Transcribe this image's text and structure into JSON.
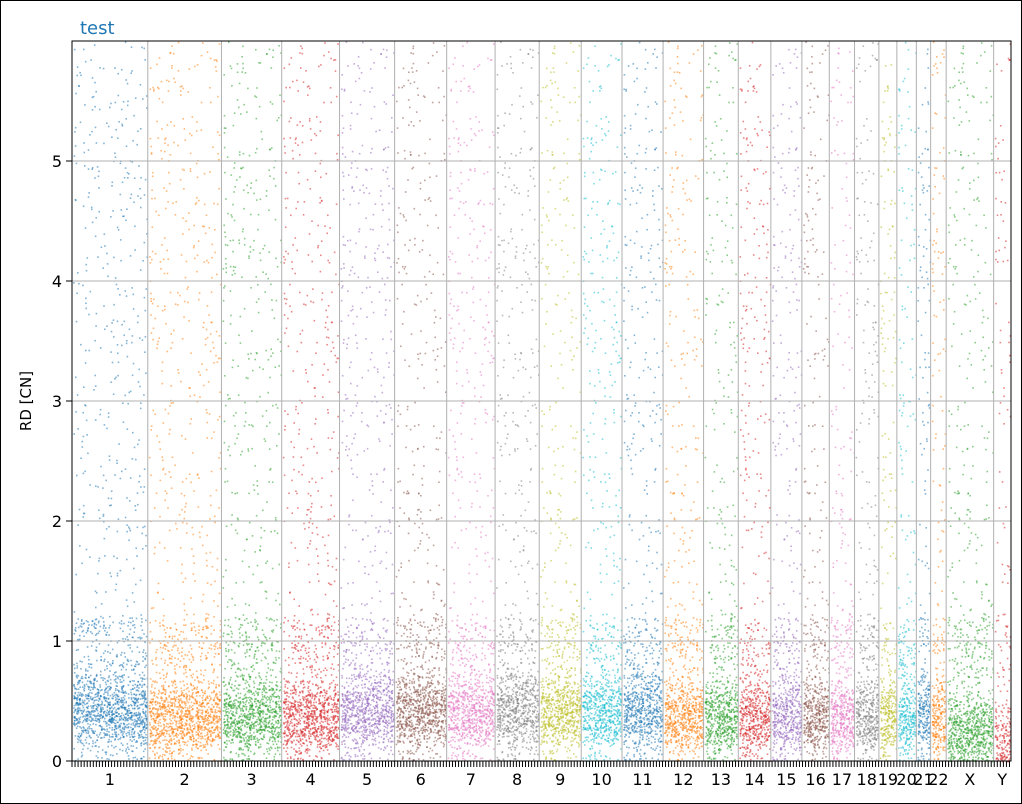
{
  "chart_data": {
    "type": "scatter",
    "title": "test",
    "xlabel": "",
    "ylabel": "RD [CN]",
    "ylim": [
      0,
      6
    ],
    "yticks": [
      0,
      1,
      2,
      3,
      4,
      5
    ],
    "grid": true,
    "legend": "none",
    "title_color": "#1f77b4",
    "x_unit": "Mb",
    "chromosomes": [
      {
        "name": "1",
        "length_mb": 249,
        "color": "#1f77b4",
        "baseline_cn": 0.3
      },
      {
        "name": "2",
        "length_mb": 242,
        "color": "#ff7f0e",
        "baseline_cn": 0.25
      },
      {
        "name": "3",
        "length_mb": 198,
        "color": "#2ca02c",
        "baseline_cn": 0.25
      },
      {
        "name": "4",
        "length_mb": 190,
        "color": "#d62728",
        "baseline_cn": 0.25
      },
      {
        "name": "5",
        "length_mb": 181,
        "color": "#9467bd",
        "baseline_cn": 0.3
      },
      {
        "name": "6",
        "length_mb": 171,
        "color": "#8c564b",
        "baseline_cn": 0.3
      },
      {
        "name": "7",
        "length_mb": 159,
        "color": "#e377c2",
        "baseline_cn": 0.3
      },
      {
        "name": "8",
        "length_mb": 145,
        "color": "#7f7f7f",
        "baseline_cn": 0.3
      },
      {
        "name": "9",
        "length_mb": 138,
        "color": "#bcbd22",
        "baseline_cn": 0.3
      },
      {
        "name": "10",
        "length_mb": 134,
        "color": "#17becf",
        "baseline_cn": 0.3
      },
      {
        "name": "11",
        "length_mb": 135,
        "color": "#1f77b4",
        "baseline_cn": 0.3
      },
      {
        "name": "12",
        "length_mb": 133,
        "color": "#ff7f0e",
        "baseline_cn": 0.25
      },
      {
        "name": "13",
        "length_mb": 114,
        "color": "#2ca02c",
        "baseline_cn": 0.25
      },
      {
        "name": "14",
        "length_mb": 107,
        "color": "#d62728",
        "baseline_cn": 0.25
      },
      {
        "name": "15",
        "length_mb": 102,
        "color": "#9467bd",
        "baseline_cn": 0.25
      },
      {
        "name": "16",
        "length_mb": 90,
        "color": "#8c564b",
        "baseline_cn": 0.25
      },
      {
        "name": "17",
        "length_mb": 83,
        "color": "#e377c2",
        "baseline_cn": 0.25
      },
      {
        "name": "18",
        "length_mb": 80,
        "color": "#7f7f7f",
        "baseline_cn": 0.25
      },
      {
        "name": "19",
        "length_mb": 59,
        "color": "#bcbd22",
        "baseline_cn": 0.25
      },
      {
        "name": "20",
        "length_mb": 64,
        "color": "#17becf",
        "baseline_cn": 0.25
      },
      {
        "name": "21",
        "length_mb": 47,
        "color": "#1f77b4",
        "baseline_cn": 0.25
      },
      {
        "name": "22",
        "length_mb": 51,
        "color": "#ff7f0e",
        "baseline_cn": 0.25
      },
      {
        "name": "X",
        "length_mb": 156,
        "color": "#2ca02c",
        "baseline_cn": 0.12
      },
      {
        "name": "Y",
        "length_mb": 57,
        "color": "#d62728",
        "baseline_cn": 0.05
      }
    ]
  }
}
